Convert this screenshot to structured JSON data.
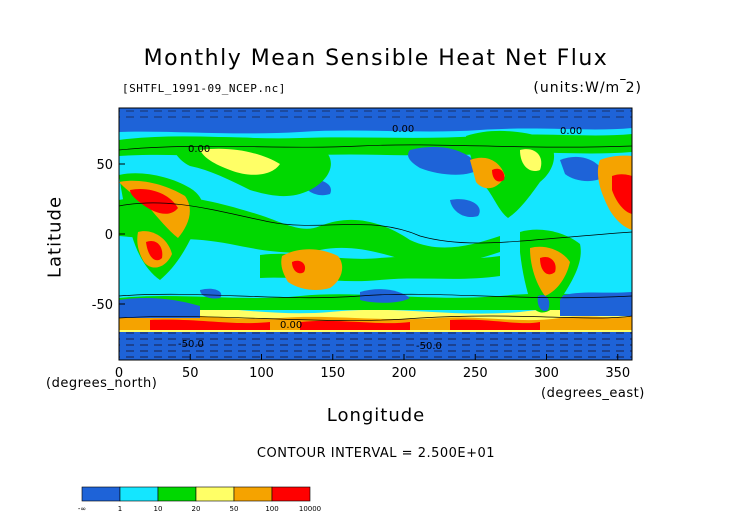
{
  "title": "Monthly Mean Sensible Heat Net Flux",
  "file_label": "[SHTFL_1991-09_NCEP.nc]",
  "units_label": "(units:W/m^2)",
  "x_axis": {
    "title": "Longitude",
    "unit_label": "(degrees_east)",
    "ticks": [
      "0",
      "50",
      "100",
      "150",
      "200",
      "250",
      "300",
      "350"
    ],
    "range": [
      0,
      360
    ]
  },
  "y_axis": {
    "title": "Latitude",
    "unit_label": "(degrees_north)",
    "ticks": [
      "50",
      "0",
      "-50"
    ],
    "range": [
      -90,
      90
    ]
  },
  "contour_interval": "CONTOUR INTERVAL = 2.500E+01",
  "contour_labels": [
    "0.00",
    "0.00",
    "0.00",
    "-50.0",
    "-50.0",
    "0.00"
  ],
  "colorbar": {
    "labels": [
      "-∞",
      "1",
      "10",
      "20",
      "50",
      "100",
      "10000"
    ],
    "colors": [
      "#1e63d8",
      "#14e6ff",
      "#00d800",
      "#ffff66",
      "#f5a300",
      "#ff0000"
    ]
  }
}
